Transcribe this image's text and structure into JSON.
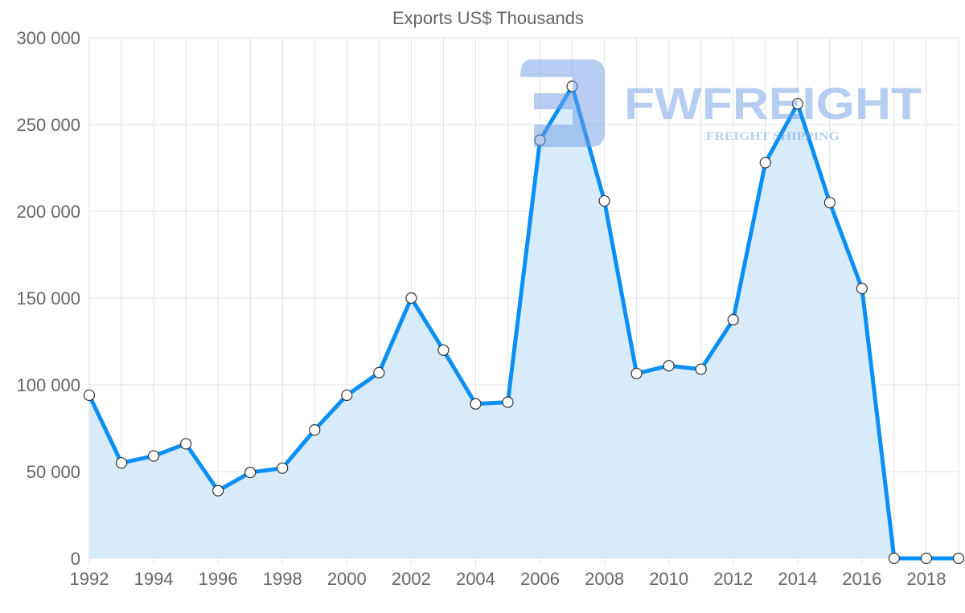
{
  "chart_data": {
    "type": "area",
    "title": "Exports US$ Thousands",
    "xlabel": "",
    "ylabel": "",
    "x": [
      1992,
      1993,
      1994,
      1995,
      1996,
      1997,
      1998,
      1999,
      2000,
      2001,
      2002,
      2003,
      2004,
      2005,
      2006,
      2007,
      2008,
      2009,
      2010,
      2011,
      2012,
      2013,
      2014,
      2015,
      2016,
      2017,
      2018,
      2019
    ],
    "series": [
      {
        "name": "Exports",
        "values": [
          94000,
          55000,
          59000,
          66000,
          39000,
          49500,
          52000,
          74000,
          94000,
          107000,
          150000,
          120000,
          89000,
          90000,
          241000,
          272000,
          206000,
          106500,
          111000,
          109000,
          137500,
          228000,
          262000,
          205000,
          155500,
          0,
          0,
          0
        ]
      }
    ],
    "ylim": [
      0,
      300000
    ],
    "yticks": [
      0,
      50000,
      100000,
      150000,
      200000,
      250000,
      300000
    ],
    "ytick_labels": [
      "0",
      "50 000",
      "100 000",
      "150 000",
      "200 000",
      "250 000",
      "300 000"
    ],
    "xticks": [
      1992,
      1994,
      1996,
      1998,
      2000,
      2002,
      2004,
      2006,
      2008,
      2010,
      2012,
      2014,
      2016,
      2018
    ],
    "xtick_labels": [
      "1992",
      "1994",
      "1996",
      "1998",
      "2000",
      "2002",
      "2004",
      "2006",
      "2008",
      "2010",
      "2012",
      "2014",
      "2016",
      "2018"
    ],
    "grid": true,
    "legend": "none",
    "colors": {
      "line": "#0a8ff5",
      "fill": "#d8ebfb",
      "grid": "#e3e3e3",
      "point_fill": "#ffffff",
      "point_stroke": "#333333"
    }
  },
  "watermark": {
    "brand": "FWFREIGHT",
    "tagline": "FREIGHT SHIPPING",
    "color": "#6f9ee6"
  }
}
